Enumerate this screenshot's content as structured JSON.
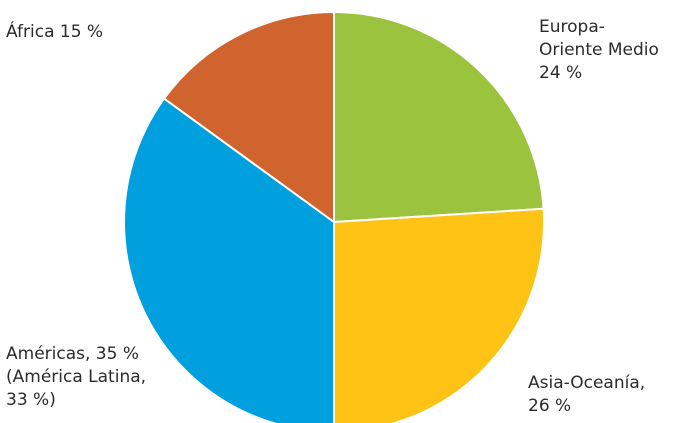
{
  "chart_data": {
    "type": "pie",
    "title": "",
    "slices": [
      {
        "name": "Europa-Oriente Medio",
        "value": 24,
        "color": "#9bc33d",
        "label_lines": [
          "Europa-",
          "Oriente Medio",
          "24 %"
        ]
      },
      {
        "name": "Asia-Oceanía",
        "value": 26,
        "color": "#fec314",
        "label_lines": [
          "Asia-Oceanía,",
          "26 %"
        ]
      },
      {
        "name": "Américas",
        "value": 35,
        "color": "#009fdd",
        "label_lines": [
          "Américas, 35 %",
          "(América Latina,",
          "33 %)"
        ]
      },
      {
        "name": "África",
        "value": 15,
        "color": "#d0642e",
        "label_lines": [
          "África 15 %"
        ]
      }
    ],
    "start_angle_deg": 0,
    "direction": "clockwise"
  }
}
